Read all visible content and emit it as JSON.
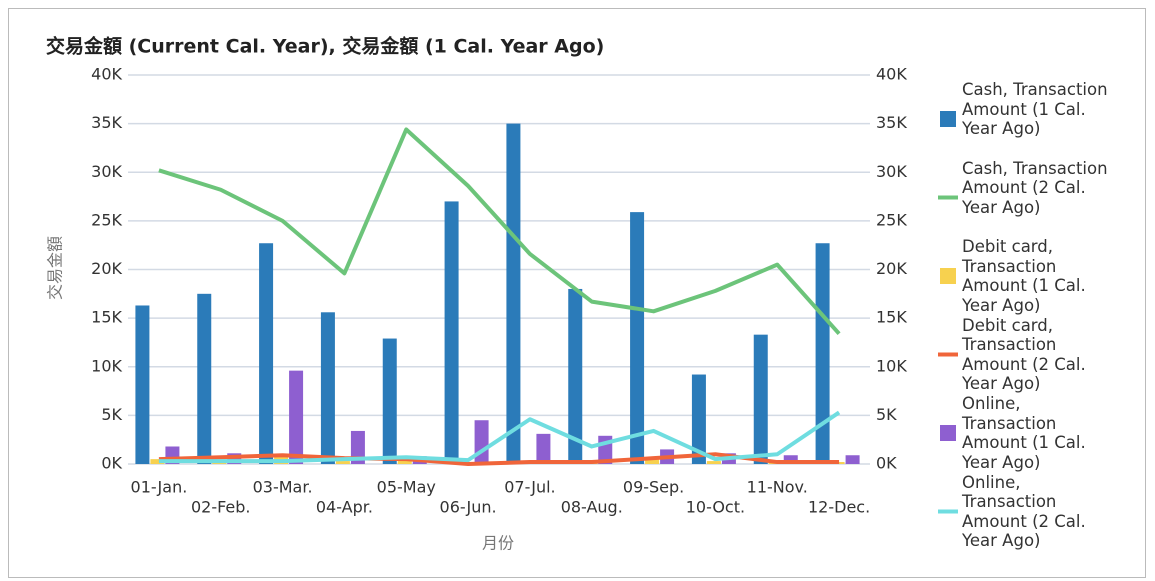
{
  "chart_data": {
    "type": "bar",
    "title": "交易金額 (Current Cal. Year), 交易金額 (1 Cal. Year Ago)",
    "x_label": "月份",
    "y_label": "交易金額",
    "categories": [
      "01-Jan.",
      "02-Feb.",
      "03-Mar.",
      "04-Apr.",
      "05-May",
      "06-Jun.",
      "07-Jul.",
      "08-Aug.",
      "09-Sep.",
      "10-Oct.",
      "11-Nov.",
      "12-Dec."
    ],
    "series": [
      {
        "name": "Cash, Transaction Amount (1 Cal. Year Ago)",
        "type": "bar",
        "color": "#2b7bb9",
        "values": [
          16300,
          17500,
          22700,
          15600,
          12900,
          27000,
          35000,
          18000,
          25900,
          9200,
          13300,
          22700
        ]
      },
      {
        "name": "Cash, Transaction Amount (2 Cal. Year Ago)",
        "type": "line",
        "axis": "y2",
        "color": "#6cc47a",
        "values": [
          30200,
          28200,
          25000,
          19600,
          34400,
          28600,
          21600,
          16700,
          15700,
          17800,
          20500,
          13400
        ]
      },
      {
        "name": "Debit card, Transaction Amount (1 Cal. Year Ago)",
        "type": "bar",
        "color": "#f7d14f",
        "values": [
          500,
          300,
          1000,
          300,
          500,
          200,
          200,
          200,
          600,
          300,
          300,
          200
        ]
      },
      {
        "name": "Debit card, Transaction Amount (2 Cal. Year Ago)",
        "type": "line",
        "axis": "y2",
        "color": "#f0653a",
        "values": [
          500,
          700,
          900,
          600,
          500,
          0,
          200,
          200,
          600,
          1000,
          200,
          200
        ]
      },
      {
        "name": "Online, Transaction Amount (1 Cal. Year Ago)",
        "type": "bar",
        "color": "#8e5fd0",
        "values": [
          1800,
          1100,
          9600,
          3400,
          800,
          4500,
          3100,
          2900,
          1500,
          1100,
          900,
          900
        ]
      },
      {
        "name": "Online, Transaction Amount (2 Cal. Year Ago)",
        "type": "line",
        "axis": "y2",
        "color": "#6fdde0",
        "values": [
          300,
          300,
          300,
          500,
          700,
          400,
          4600,
          1800,
          3400,
          500,
          1000,
          5300
        ]
      }
    ],
    "ylim": [
      0,
      40000
    ],
    "yticks": [
      {
        "value": 0,
        "label": "0K"
      },
      {
        "value": 5000,
        "label": "5K"
      },
      {
        "value": 10000,
        "label": "10K"
      },
      {
        "value": 15000,
        "label": "15K"
      },
      {
        "value": 20000,
        "label": "20K"
      },
      {
        "value": 25000,
        "label": "25K"
      },
      {
        "value": 30000,
        "label": "30K"
      },
      {
        "value": 35000,
        "label": "35K"
      },
      {
        "value": 40000,
        "label": "40K"
      }
    ],
    "y2lim": [
      0,
      40000
    ],
    "y2ticks": [
      {
        "value": 0,
        "label": "0K"
      },
      {
        "value": 5000,
        "label": "5K"
      },
      {
        "value": 10000,
        "label": "10K"
      },
      {
        "value": 15000,
        "label": "15K"
      },
      {
        "value": 20000,
        "label": "20K"
      },
      {
        "value": 25000,
        "label": "25K"
      },
      {
        "value": 30000,
        "label": "30K"
      },
      {
        "value": 35000,
        "label": "35K"
      },
      {
        "value": 40000,
        "label": "40K"
      }
    ],
    "grid": true,
    "legend": "right"
  }
}
